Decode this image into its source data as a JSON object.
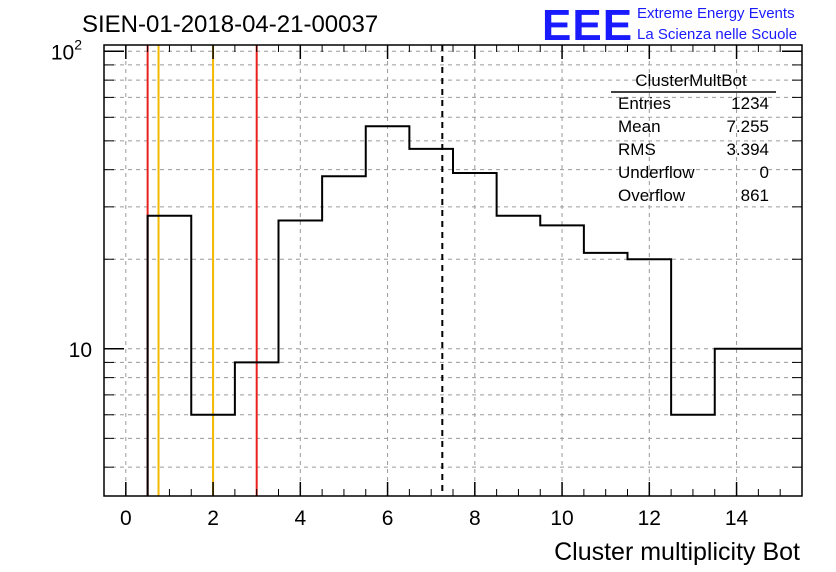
{
  "chart_data": {
    "type": "histogram",
    "title": "SIEN-01-2018-04-21-00037",
    "xlabel": "Cluster multiplicity Bot",
    "ylabel": "",
    "xlim": [
      -0.5,
      15.5
    ],
    "ylim": [
      3.2,
      105
    ],
    "log_y": true,
    "grid": true,
    "x_ticks": [
      0,
      2,
      4,
      6,
      8,
      10,
      12,
      14
    ],
    "y_tick_labels": [
      {
        "value": 10,
        "label": "10"
      },
      {
        "value": 100,
        "label": "10",
        "exponent": "2"
      }
    ],
    "bin_edges": [
      0.5,
      1.5,
      2.5,
      3.5,
      4.5,
      5.5,
      6.5,
      7.5,
      8.5,
      9.5,
      10.5,
      11.5,
      12.5,
      13.5,
      15.5
    ],
    "values": [
      28,
      6,
      9,
      27,
      38,
      56,
      47,
      39,
      28,
      26,
      21,
      20,
      6,
      10
    ],
    "vertical_lines": [
      {
        "x": 0.5,
        "color": "#e8211c",
        "style": "solid"
      },
      {
        "x": 0.75,
        "color": "#f5b800",
        "style": "solid"
      },
      {
        "x": 2.0,
        "color": "#f5b800",
        "style": "solid"
      },
      {
        "x": 3.0,
        "color": "#e8211c",
        "style": "solid"
      },
      {
        "x": 7.255,
        "color": "#000000",
        "style": "dashed"
      }
    ],
    "stats_box": {
      "name": "ClusterMultBot",
      "rows": [
        {
          "label": "Entries",
          "value": "1234"
        },
        {
          "label": "Mean",
          "value": "7.255"
        },
        {
          "label": "RMS",
          "value": "3.394"
        },
        {
          "label": "Underflow",
          "value": "0"
        },
        {
          "label": "Overflow",
          "value": "861"
        }
      ]
    }
  },
  "logo": {
    "mark": "EEE",
    "line1": "Extreme Energy Events",
    "line2": "La Scienza nelle Scuole",
    "color": "#1a1aff"
  }
}
